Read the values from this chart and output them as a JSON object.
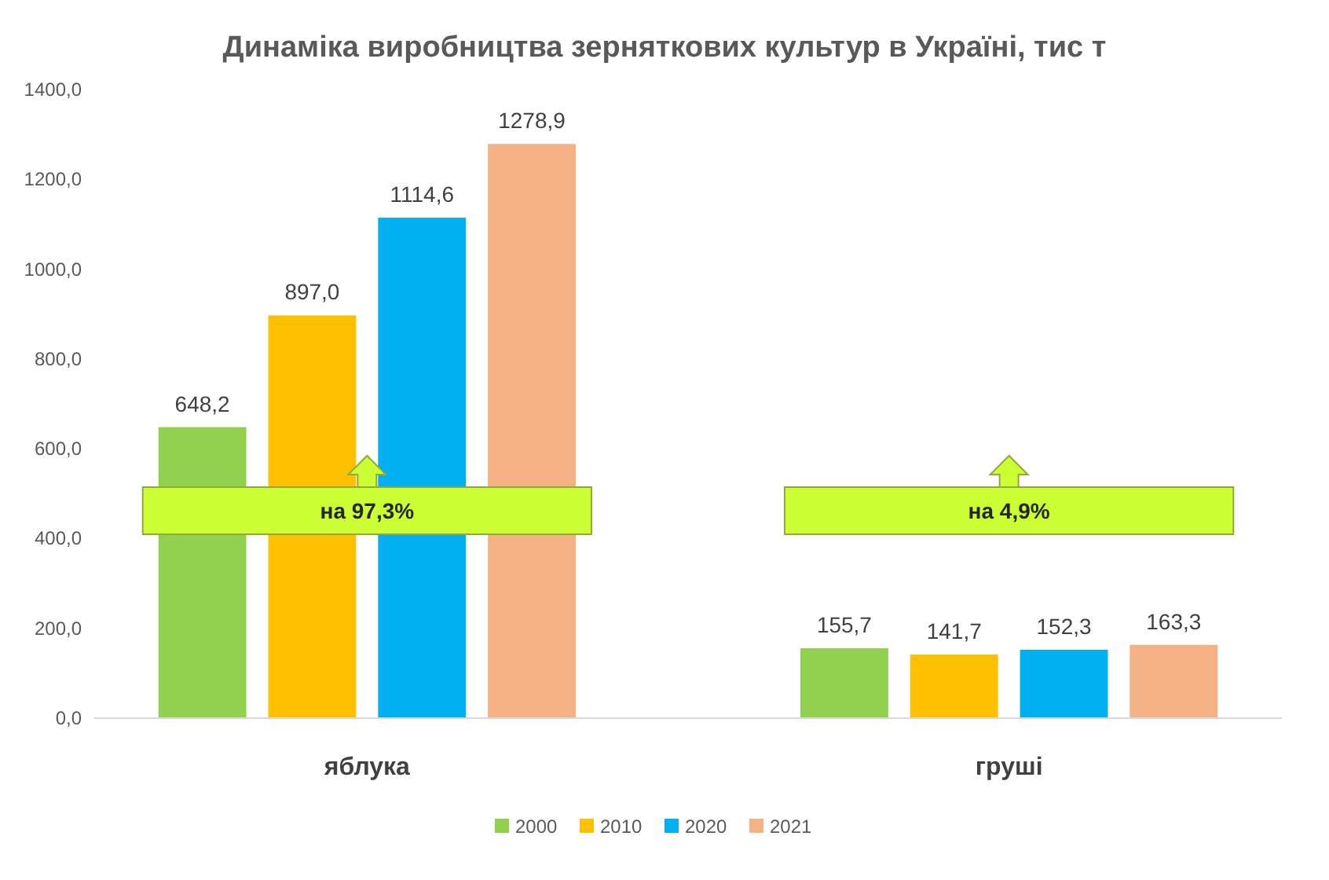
{
  "chart_data": {
    "type": "bar",
    "title": "Динаміка виробництва зерняткових культур в Україні, тис т",
    "categories": [
      "яблука",
      "груші"
    ],
    "series": [
      {
        "name": "2000",
        "color": "#92d050",
        "values": [
          648.2,
          155.7
        ],
        "value_labels": [
          "648,2",
          "155,7"
        ]
      },
      {
        "name": "2010",
        "color": "#ffc000",
        "values": [
          897.0,
          141.7
        ],
        "value_labels": [
          "897,0",
          "141,7"
        ]
      },
      {
        "name": "2020",
        "color": "#00b0f0",
        "values": [
          1114.6,
          152.3
        ],
        "value_labels": [
          "1114,6",
          "152,3"
        ]
      },
      {
        "name": "2021",
        "color": "#f4b183",
        "values": [
          1278.9,
          163.3
        ],
        "value_labels": [
          "1278,9",
          "163,3"
        ]
      }
    ],
    "ylim": [
      0,
      1400
    ],
    "yticks": [
      {
        "value": 0,
        "label": "0,0"
      },
      {
        "value": 200,
        "label": "200,0"
      },
      {
        "value": 400,
        "label": "400,0"
      },
      {
        "value": 600,
        "label": "600,0"
      },
      {
        "value": 800,
        "label": "800,0"
      },
      {
        "value": 1000,
        "label": "1000,0"
      },
      {
        "value": 1200,
        "label": "1200,0"
      },
      {
        "value": 1400,
        "label": "1400,0"
      }
    ],
    "grid": false,
    "legend": "bottom",
    "annotations": [
      "на 97,3%",
      "на 4,9%"
    ]
  }
}
